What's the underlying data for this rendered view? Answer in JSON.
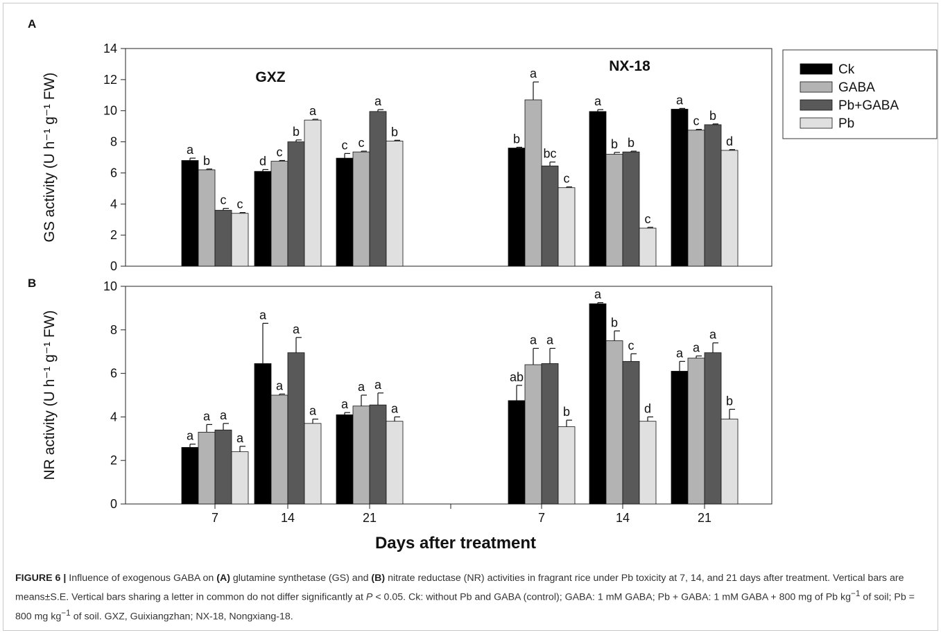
{
  "chart_data": [
    {
      "id": "A",
      "panel_label": "A",
      "type": "bar",
      "ylabel": "GS activity (U h⁻¹ g⁻¹ FW)",
      "ylim": [
        0,
        14
      ],
      "yticks": [
        "0",
        "2",
        "4",
        "6",
        "8",
        "10",
        "12",
        "14"
      ],
      "group_labels": [
        "GXZ",
        "NX-18"
      ],
      "series_names": [
        "Ck",
        "GABA",
        "Pb+GABA",
        "Pb"
      ],
      "groups": [
        {
          "label": "GXZ",
          "category": "7",
          "values": [
            6.8,
            6.2,
            3.6,
            3.4
          ],
          "errors": [
            0.15,
            0.05,
            0.12,
            0.05
          ],
          "letters": [
            "a",
            "b",
            "c",
            "c"
          ]
        },
        {
          "label": "GXZ",
          "category": "14",
          "values": [
            6.1,
            6.75,
            8.0,
            9.4
          ],
          "errors": [
            0.12,
            0.05,
            0.12,
            0.05
          ],
          "letters": [
            "d",
            "c",
            "b",
            "a"
          ]
        },
        {
          "label": "GXZ",
          "category": "21",
          "values": [
            6.95,
            7.35,
            9.95,
            8.05
          ],
          "errors": [
            0.3,
            0.05,
            0.12,
            0.05
          ],
          "letters": [
            "c",
            "c",
            "a",
            "b"
          ]
        },
        {
          "label": "NX-18",
          "category": "7",
          "values": [
            7.6,
            10.7,
            6.45,
            5.05
          ],
          "errors": [
            0.05,
            1.15,
            0.25,
            0.05
          ],
          "letters": [
            "b",
            "a",
            "bc",
            "c"
          ]
        },
        {
          "label": "NX-18",
          "category": "14",
          "values": [
            9.95,
            7.2,
            7.35,
            2.45
          ],
          "errors": [
            0.12,
            0.12,
            0.05,
            0.05
          ],
          "letters": [
            "a",
            "b",
            "b",
            "c"
          ]
        },
        {
          "label": "NX-18",
          "category": "21",
          "values": [
            10.1,
            8.75,
            9.1,
            7.45
          ],
          "errors": [
            0.05,
            0.05,
            0.05,
            0.05
          ],
          "letters": [
            "a",
            "c",
            "b",
            "d"
          ]
        }
      ]
    },
    {
      "id": "B",
      "panel_label": "B",
      "type": "bar",
      "ylabel": "NR activity (U h⁻¹ g⁻¹ FW)",
      "ylim": [
        0,
        10
      ],
      "yticks": [
        "0",
        "2",
        "4",
        "6",
        "8",
        "10"
      ],
      "xlabel": "Days after treatment",
      "categories": [
        "7",
        "14",
        "21",
        "7",
        "14",
        "21"
      ],
      "series_names": [
        "Ck",
        "GABA",
        "Pb+GABA",
        "Pb"
      ],
      "groups": [
        {
          "label": "GXZ",
          "category": "7",
          "values": [
            2.6,
            3.3,
            3.4,
            2.4
          ],
          "errors": [
            0.15,
            0.35,
            0.3,
            0.25
          ],
          "letters": [
            "a",
            "a",
            "a",
            "a"
          ]
        },
        {
          "label": "GXZ",
          "category": "14",
          "values": [
            6.45,
            5.0,
            6.95,
            3.7
          ],
          "errors": [
            1.85,
            0.05,
            0.7,
            0.2
          ],
          "letters": [
            "a",
            "a",
            "a",
            "a"
          ]
        },
        {
          "label": "GXZ",
          "category": "21",
          "values": [
            4.1,
            4.5,
            4.55,
            3.8
          ],
          "errors": [
            0.1,
            0.5,
            0.55,
            0.2
          ],
          "letters": [
            "a",
            "a",
            "a",
            "a"
          ]
        },
        {
          "label": "NX-18",
          "category": "7",
          "values": [
            4.75,
            6.4,
            6.45,
            3.55
          ],
          "errors": [
            0.7,
            0.75,
            0.7,
            0.3
          ],
          "letters": [
            "ab",
            "a",
            "a",
            "b"
          ]
        },
        {
          "label": "NX-18",
          "category": "14",
          "values": [
            9.2,
            7.5,
            6.55,
            3.8
          ],
          "errors": [
            0.05,
            0.45,
            0.35,
            0.2
          ],
          "letters": [
            "a",
            "b",
            "c",
            "d"
          ]
        },
        {
          "label": "NX-18",
          "category": "21",
          "values": [
            6.1,
            6.7,
            6.95,
            3.9
          ],
          "errors": [
            0.45,
            0.1,
            0.45,
            0.45
          ],
          "letters": [
            "a",
            "a",
            "a",
            "b"
          ]
        }
      ]
    }
  ],
  "legend": {
    "placement": "right",
    "items": [
      {
        "name": "Ck",
        "color": "#000000"
      },
      {
        "name": "GABA",
        "color": "#b3b3b3"
      },
      {
        "name": "Pb+GABA",
        "color": "#595959"
      },
      {
        "name": "Pb",
        "color": "#e0e0e0"
      }
    ]
  },
  "caption": {
    "figure_label": "FIGURE 6 |",
    "t1": " Influence of exogenous GABA on ",
    "b1": "(A)",
    "t2": " glutamine synthetase (GS) and ",
    "b2": "(B)",
    "t3": " nitrate reductase (NR) activities in fragrant rice under Pb toxicity at 7, 14, and 21 days after treatment. Vertical bars are means±S.E. Vertical bars sharing a letter in common do not differ significantly at ",
    "p": "P",
    "t4": " < 0.05. Ck: without Pb and GABA (control); GABA: 1 mM GABA; Pb + GABA: 1 mM GABA + 800 mg of Pb kg",
    "sup1": "−1",
    "t5": " of soil; Pb = 800 mg kg",
    "sup2": "−1",
    "t6": " of soil. GXZ, Guixiangzhan; NX-18, Nongxiang-18."
  }
}
